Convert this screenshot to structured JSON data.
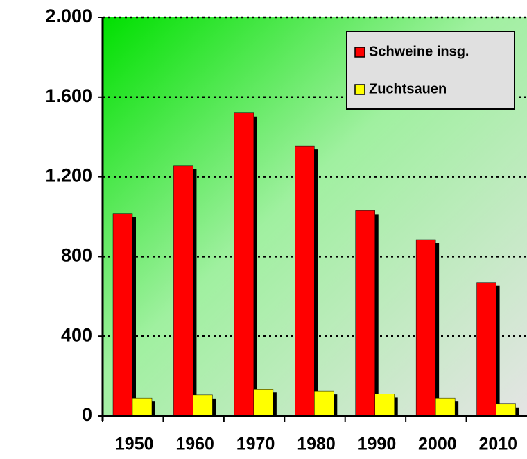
{
  "chart_data": {
    "type": "bar",
    "categories": [
      "1950",
      "1960",
      "1970",
      "1980",
      "1990",
      "2000",
      "2010"
    ],
    "series": [
      {
        "name": "Schweine insg.",
        "color": "#ff0000",
        "values": [
          1015,
          1255,
          1520,
          1355,
          1030,
          885,
          670
        ]
      },
      {
        "name": "Zuchtsauen",
        "color": "#ffff00",
        "values": [
          90,
          105,
          135,
          125,
          110,
          90,
          60
        ]
      }
    ],
    "ylim": [
      0,
      2000
    ],
    "yticks": [
      0,
      400,
      800,
      {
        "value": 1200,
        "label": "1.200"
      },
      {
        "value": 1600,
        "label": "1.600"
      },
      {
        "value": 2000,
        "label": "2.000"
      }
    ],
    "grid": true,
    "legend": "top-right"
  }
}
